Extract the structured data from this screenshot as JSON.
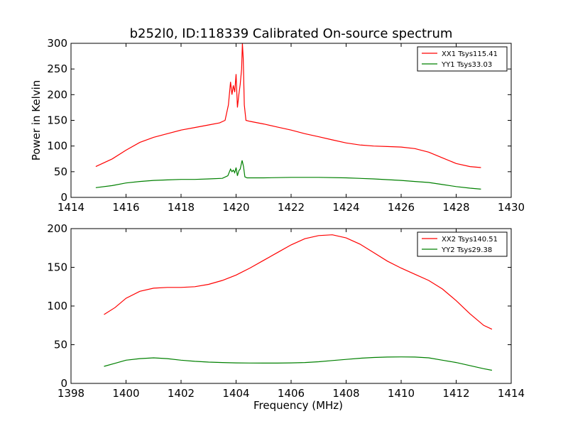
{
  "figure": {
    "title": "b252l0, ID:118339 Calibrated On-source spectrum",
    "background": "#ffffff"
  },
  "chart_data": [
    {
      "type": "line",
      "title": "b252l0, ID:118339 Calibrated On-source spectrum",
      "xlabel": "",
      "ylabel": "Power in Kelvin",
      "xlim": [
        1414,
        1430
      ],
      "ylim": [
        0,
        300
      ],
      "xticks": [
        "1414",
        "1416",
        "1418",
        "1420",
        "1422",
        "1424",
        "1426",
        "1428",
        "1430"
      ],
      "yticks": [
        "0",
        "50",
        "100",
        "150",
        "200",
        "250",
        "300"
      ],
      "grid": false,
      "legend": "top-right",
      "series": [
        {
          "name": "XX1 Tsys115.41",
          "color": "#ff0000",
          "x": [
            1414.9,
            1415.5,
            1416.0,
            1416.5,
            1417.0,
            1417.5,
            1418.0,
            1418.5,
            1419.0,
            1419.4,
            1419.6,
            1419.72,
            1419.8,
            1419.85,
            1419.9,
            1419.95,
            1420.0,
            1420.05,
            1420.1,
            1420.15,
            1420.2,
            1420.23,
            1420.26,
            1420.3,
            1420.36,
            1420.5,
            1421.0,
            1421.5,
            1422.0,
            1422.5,
            1423.0,
            1423.5,
            1424.0,
            1424.5,
            1425.0,
            1425.5,
            1426.0,
            1426.5,
            1427.0,
            1427.5,
            1428.0,
            1428.5,
            1428.9
          ],
          "y": [
            60,
            75,
            92,
            107,
            117,
            124,
            131,
            136,
            141,
            145,
            150,
            180,
            225,
            200,
            218,
            205,
            240,
            175,
            200,
            220,
            250,
            300,
            270,
            180,
            150,
            148,
            143,
            137,
            131,
            124,
            118,
            112,
            106,
            102,
            100,
            99,
            98,
            95,
            88,
            77,
            66,
            60,
            58
          ]
        },
        {
          "name": "YY1 Tsys33.03",
          "color": "#008000",
          "x": [
            1414.9,
            1415.5,
            1416.0,
            1416.5,
            1417.0,
            1417.5,
            1418.0,
            1418.5,
            1419.0,
            1419.5,
            1419.7,
            1419.8,
            1419.85,
            1419.9,
            1419.95,
            1420.0,
            1420.05,
            1420.1,
            1420.15,
            1420.22,
            1420.27,
            1420.32,
            1420.4,
            1421.0,
            1422.0,
            1423.0,
            1424.0,
            1425.0,
            1426.0,
            1426.5,
            1427.0,
            1427.5,
            1428.0,
            1428.5,
            1428.9
          ],
          "y": [
            19,
            23,
            28,
            31,
            33,
            34,
            35,
            35,
            36,
            37,
            42,
            55,
            50,
            53,
            48,
            58,
            42,
            52,
            55,
            72,
            60,
            40,
            38,
            38,
            39,
            39,
            38,
            36,
            33,
            31,
            29,
            25,
            21,
            18,
            16
          ]
        }
      ]
    },
    {
      "type": "line",
      "title": "",
      "xlabel": "Frequency (MHz)",
      "ylabel": "",
      "xlim": [
        1398,
        1414
      ],
      "ylim": [
        0,
        200
      ],
      "xticks": [
        "1398",
        "1400",
        "1402",
        "1404",
        "1406",
        "1408",
        "1410",
        "1412",
        "1414"
      ],
      "yticks": [
        "0",
        "50",
        "100",
        "150",
        "200"
      ],
      "grid": false,
      "legend": "top-right",
      "series": [
        {
          "name": "XX2 Tsys140.51",
          "color": "#ff0000",
          "x": [
            1399.2,
            1399.6,
            1400.0,
            1400.5,
            1401.0,
            1401.5,
            1402.0,
            1402.5,
            1403.0,
            1403.5,
            1404.0,
            1404.5,
            1405.0,
            1405.5,
            1406.0,
            1406.5,
            1407.0,
            1407.5,
            1408.0,
            1408.5,
            1409.0,
            1409.5,
            1410.0,
            1410.5,
            1411.0,
            1411.5,
            1412.0,
            1412.5,
            1413.0,
            1413.3
          ],
          "y": [
            89,
            98,
            110,
            119,
            123,
            124,
            124,
            125,
            128,
            133,
            140,
            149,
            159,
            169,
            179,
            187,
            191,
            192,
            188,
            180,
            169,
            158,
            149,
            141,
            133,
            122,
            107,
            90,
            75,
            70
          ]
        },
        {
          "name": "YY2 Tsys29.38",
          "color": "#008000",
          "x": [
            1399.2,
            1399.6,
            1400.0,
            1400.5,
            1401.0,
            1401.5,
            1402.0,
            1402.5,
            1403.0,
            1403.5,
            1404.0,
            1404.5,
            1405.0,
            1405.5,
            1406.0,
            1406.5,
            1407.0,
            1407.5,
            1408.0,
            1408.5,
            1409.0,
            1409.5,
            1410.0,
            1410.5,
            1411.0,
            1411.5,
            1412.0,
            1412.5,
            1413.0,
            1413.3
          ],
          "y": [
            22,
            26,
            30,
            32,
            33,
            32,
            30,
            28.5,
            27.5,
            27,
            26.5,
            26.3,
            26.2,
            26.2,
            26.5,
            27,
            28,
            29.5,
            31,
            32.5,
            33.5,
            34,
            34.2,
            34,
            33,
            30,
            27,
            23,
            19,
            17
          ]
        }
      ]
    }
  ]
}
